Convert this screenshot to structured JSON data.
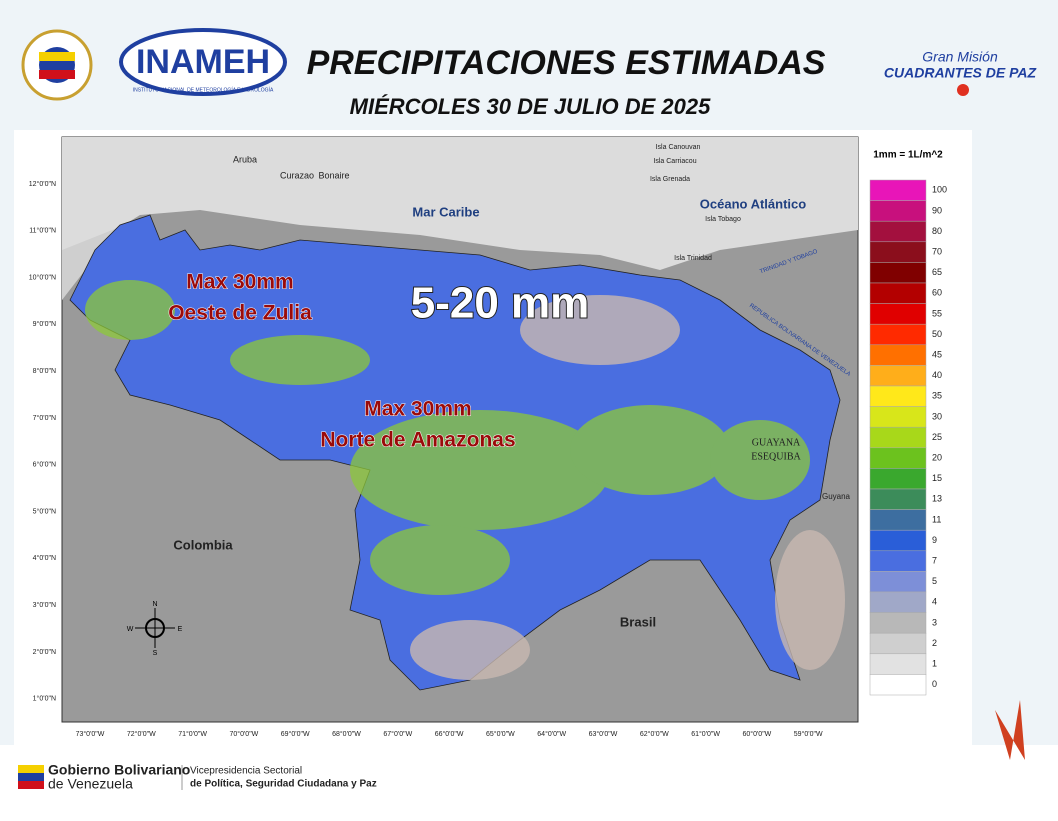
{
  "header": {
    "title": "PRECIPITACIONES ESTIMADAS",
    "subtitle": "MIÉRCOLES 30 DE JULIO DE 2025",
    "logo_left": "INAMEH",
    "logo_left_caption": "INSTITUTO NACIONAL DE METEOROLOGÍA E HIDROLOGÍA",
    "logo_right_line1": "Gran Misión",
    "logo_right_line2": "CUADRANTES DE PAZ"
  },
  "map": {
    "places": [
      "Aruba",
      "Curazao",
      "Bonaire",
      "Mar Caribe",
      "Océano Atlántico",
      "Isla Tobago",
      "Isla Trinidad",
      "Isla Canouvan",
      "Isla Carriacou",
      "Isla Grenada",
      "TRINIDAD Y TOBAGO",
      "REPUBLICA BOLIVARIANA DE VENEZUELA",
      "GUAYANA",
      "ESEQUIBA",
      "Guyana",
      "Colombia",
      "Brasil"
    ],
    "annotations": [
      "Max 30mm",
      "Oeste de Zulia",
      "5-20 mm",
      "Max 30mm",
      "Norte de Amazonas"
    ],
    "latitudes": [
      "12°0'0\"N",
      "11°0'0\"N",
      "10°0'0\"N",
      "9°0'0\"N",
      "8°0'0\"N",
      "7°0'0\"N",
      "6°0'0\"N",
      "5°0'0\"N",
      "4°0'0\"N",
      "3°0'0\"N",
      "2°0'0\"N",
      "1°0'0\"N"
    ],
    "longitudes": [
      "73°0'0\"W",
      "72°0'0\"W",
      "71°0'0\"W",
      "70°0'0\"W",
      "69°0'0\"W",
      "68°0'0\"W",
      "67°0'0\"W",
      "66°0'0\"W",
      "65°0'0\"W",
      "64°0'0\"W",
      "63°0'0\"W",
      "62°0'0\"W",
      "61°0'0\"W",
      "60°0'0\"W",
      "59°0'0\"W"
    ],
    "compass": [
      "N",
      "S",
      "E",
      "W"
    ]
  },
  "legend": {
    "title": "1mm = 1L/m^2",
    "items": [
      {
        "label": "100",
        "color": "#e815b8"
      },
      {
        "label": "90",
        "color": "#c8107d"
      },
      {
        "label": "80",
        "color": "#a3103e"
      },
      {
        "label": "70",
        "color": "#8b0e1c"
      },
      {
        "label": "65",
        "color": "#800000"
      },
      {
        "label": "60",
        "color": "#b30000"
      },
      {
        "label": "55",
        "color": "#e00000"
      },
      {
        "label": "50",
        "color": "#ff2a00"
      },
      {
        "label": "45",
        "color": "#ff7000"
      },
      {
        "label": "40",
        "color": "#ffae1a"
      },
      {
        "label": "35",
        "color": "#ffe81a"
      },
      {
        "label": "30",
        "color": "#d8e61a"
      },
      {
        "label": "25",
        "color": "#a8d81a"
      },
      {
        "label": "20",
        "color": "#6cc21e"
      },
      {
        "label": "15",
        "color": "#3aa82e"
      },
      {
        "label": "13",
        "color": "#3c8c5a"
      },
      {
        "label": "11",
        "color": "#3d6ea0"
      },
      {
        "label": "9",
        "color": "#2a5ed8"
      },
      {
        "label": "7",
        "color": "#4a6ee0"
      },
      {
        "label": "5",
        "color": "#7d8fd8"
      },
      {
        "label": "4",
        "color": "#a0a8c8"
      },
      {
        "label": "3",
        "color": "#b8b8b8"
      },
      {
        "label": "2",
        "color": "#cfcfcf"
      },
      {
        "label": "1",
        "color": "#e2e2e2"
      },
      {
        "label": "0",
        "color": "#ffffff"
      }
    ]
  },
  "footer": {
    "org_line1": "Gobierno Bolivariano",
    "org_line2": "de Venezuela",
    "dept_line1": "Vicepresidencia Sectorial",
    "dept_line2": "de Política, Seguridad Ciudadana y Paz"
  }
}
